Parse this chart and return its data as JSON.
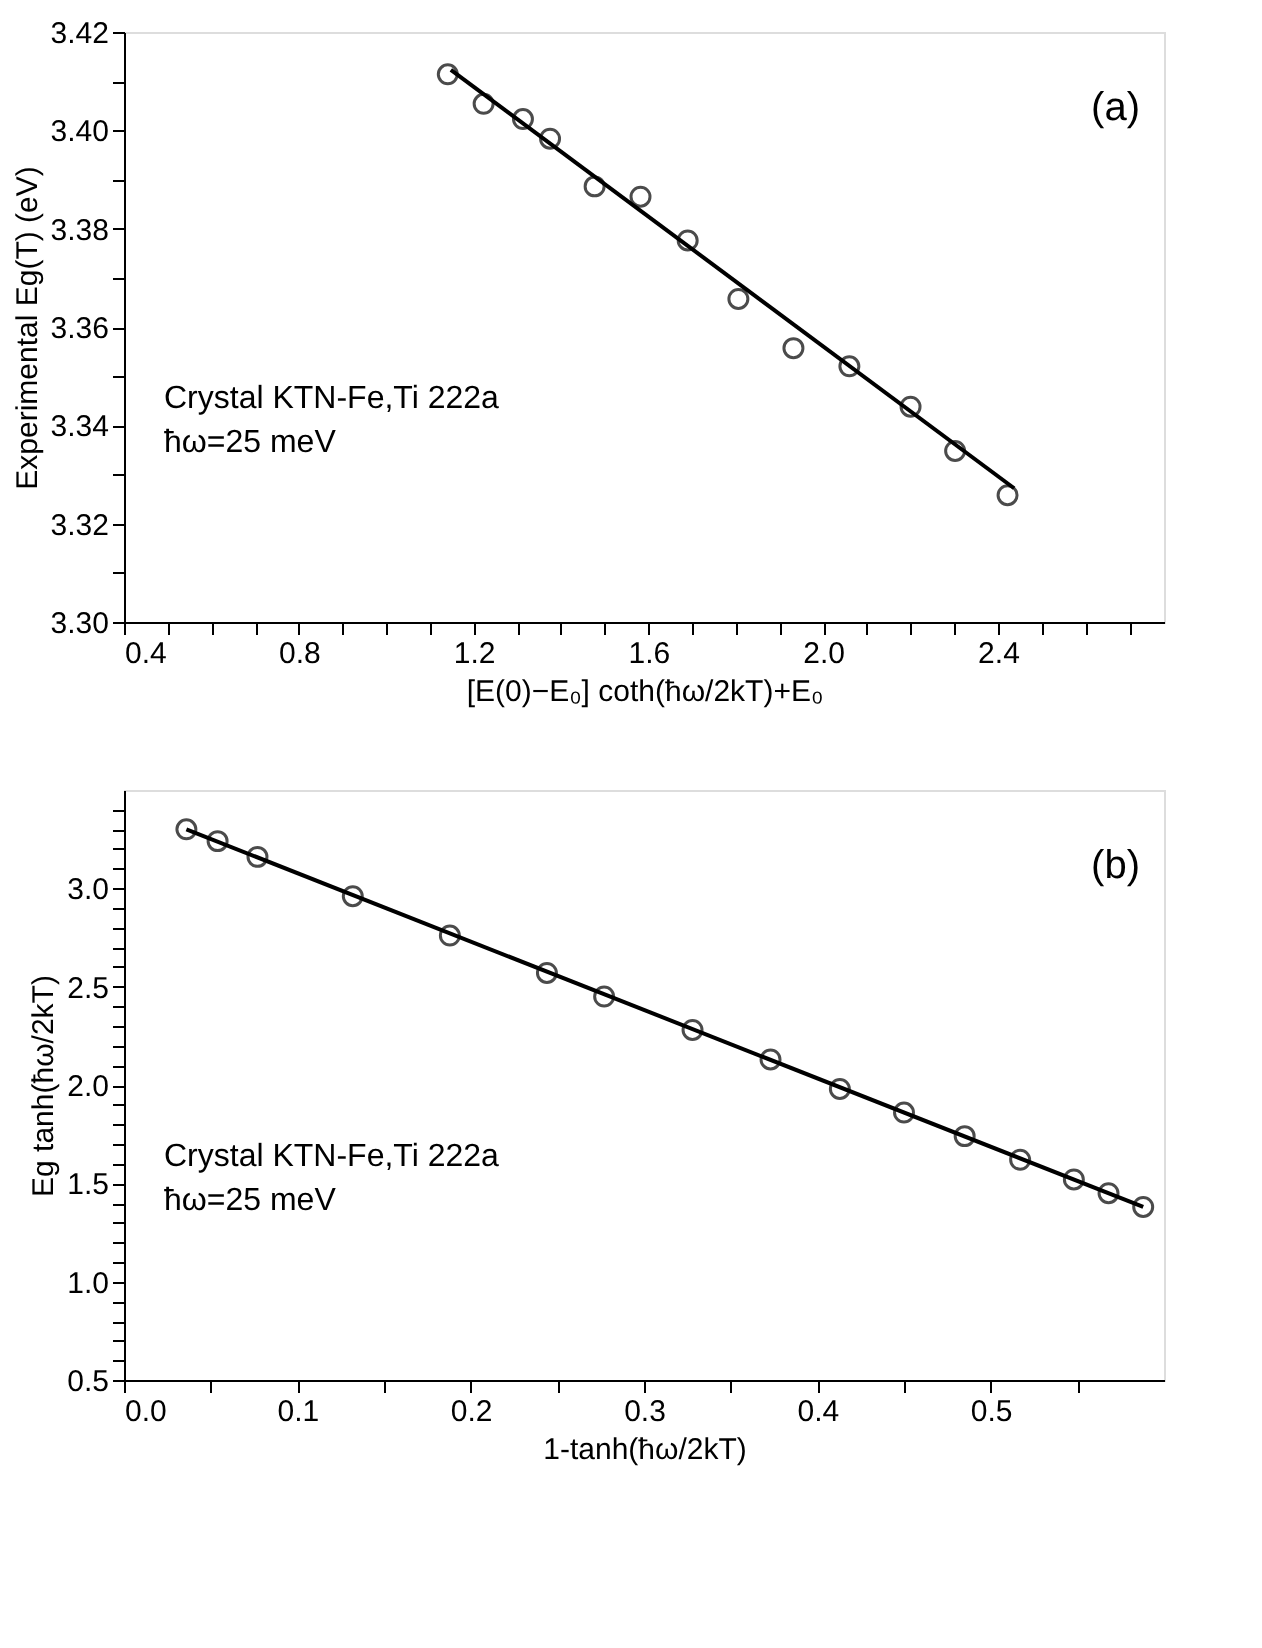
{
  "chart_data": [
    {
      "type": "scatter",
      "xlabel": "[E(0)−E₀] coth(ħω/2kT)+E₀",
      "ylabel": "Experimental Eg(T) (eV)",
      "annotations": [
        "(a)",
        "Crystal KTN-Fe,Ti 222a",
        "ħω=25 meV"
      ],
      "xlim": [
        0.4,
        2.78
      ],
      "ylim": [
        3.3,
        3.42
      ],
      "xticks": [
        0.4,
        {
          "value": 0.5,
          "label": null
        },
        {
          "value": 0.6,
          "label": null
        },
        {
          "value": 0.7,
          "label": null
        },
        0.8,
        {
          "value": 0.9,
          "label": null
        },
        {
          "value": 1.0,
          "label": null
        },
        {
          "value": 1.1,
          "label": null
        },
        1.2,
        {
          "value": 1.3,
          "label": null
        },
        {
          "value": 1.4,
          "label": null
        },
        {
          "value": 1.5,
          "label": null
        },
        1.6,
        {
          "value": 1.7,
          "label": null
        },
        {
          "value": 1.8,
          "label": null
        },
        {
          "value": 1.9,
          "label": null
        },
        {
          "value": 2.0,
          "label": "2.0"
        },
        {
          "value": 2.1,
          "label": null
        },
        {
          "value": 2.2,
          "label": null
        },
        {
          "value": 2.3,
          "label": null
        },
        2.4,
        {
          "value": 2.5,
          "label": null
        },
        {
          "value": 2.6,
          "label": null
        },
        {
          "value": 2.7,
          "label": null
        }
      ],
      "yticks": [
        {
          "value": 3.3,
          "label": "3.30"
        },
        {
          "value": 3.31,
          "label": null
        },
        3.32,
        {
          "value": 3.33,
          "label": null
        },
        3.34,
        {
          "value": 3.35,
          "label": null
        },
        3.36,
        {
          "value": 3.37,
          "label": null
        },
        3.38,
        {
          "value": 3.39,
          "label": null
        },
        {
          "value": 3.4,
          "label": "3.40"
        },
        {
          "value": 3.41,
          "label": null
        },
        3.42
      ],
      "grid": false,
      "series": [
        {
          "marker": "circle",
          "color": "#000000",
          "x": [
            1.141,
            1.223,
            1.313,
            1.375,
            1.477,
            1.582,
            1.69,
            1.806,
            1.932,
            2.06,
            2.2,
            2.302,
            2.422
          ],
          "values": [
            3.4114,
            3.4054,
            3.4023,
            3.3983,
            3.3886,
            3.3865,
            3.3776,
            3.3657,
            3.3557,
            3.352,
            3.3438,
            3.3348,
            3.3258
          ]
        },
        {
          "type": "line",
          "line_style": "solid",
          "color": "#000000",
          "x": [
            1.148,
            2.437
          ],
          "values": [
            3.4123,
            3.3272
          ]
        }
      ]
    },
    {
      "type": "scatter",
      "xlabel": "1-tanh(ħω/2kT)",
      "ylabel": "Eg tanh(ħω/2kT)",
      "annotations": [
        "(b)",
        "Crystal KTN-Fe,Ti 222a",
        "ħω=25 meV"
      ],
      "xlim": [
        0.0,
        0.6
      ],
      "ylim": [
        0.5,
        3.5
      ],
      "xticks": [
        {
          "value": 0.0,
          "label": "0.0"
        },
        {
          "value": 0.05,
          "label": null
        },
        0.1,
        {
          "value": 0.15,
          "label": null
        },
        0.2,
        {
          "value": 0.25,
          "label": null
        },
        0.3,
        {
          "value": 0.35,
          "label": null
        },
        0.4,
        {
          "value": 0.45,
          "label": null
        },
        0.5,
        {
          "value": 0.55,
          "label": null
        }
      ],
      "yticks": [
        0.5,
        {
          "value": 0.6,
          "label": null
        },
        {
          "value": 0.7,
          "label": null
        },
        {
          "value": 0.8,
          "label": null
        },
        {
          "value": 0.9,
          "label": null
        },
        {
          "value": 1.0,
          "label": "1.0"
        },
        {
          "value": 1.1,
          "label": null
        },
        {
          "value": 1.2,
          "label": null
        },
        {
          "value": 1.3,
          "label": null
        },
        {
          "value": 1.4,
          "label": null
        },
        1.5,
        {
          "value": 1.6,
          "label": null
        },
        {
          "value": 1.7,
          "label": null
        },
        {
          "value": 1.8,
          "label": null
        },
        {
          "value": 1.9,
          "label": null
        },
        {
          "value": 2.0,
          "label": "2.0"
        },
        {
          "value": 2.1,
          "label": null
        },
        {
          "value": 2.2,
          "label": null
        },
        {
          "value": 2.3,
          "label": null
        },
        {
          "value": 2.4,
          "label": null
        },
        2.5,
        {
          "value": 2.6,
          "label": null
        },
        {
          "value": 2.7,
          "label": null
        },
        {
          "value": 2.8,
          "label": null
        },
        {
          "value": 2.9,
          "label": null
        },
        {
          "value": 3.0,
          "label": "3.0"
        },
        {
          "value": 3.1,
          "label": null
        },
        {
          "value": 3.2,
          "label": null
        },
        {
          "value": 3.3,
          "label": null
        },
        {
          "value": 3.4,
          "label": null
        }
      ],
      "grid": false,
      "series": [
        {
          "marker": "circle",
          "color": "#000000",
          "x": [
            0.036,
            0.054,
            0.077,
            0.132,
            0.188,
            0.244,
            0.277,
            0.328,
            0.373,
            0.413,
            0.45,
            0.485,
            0.517,
            0.548,
            0.568,
            0.588
          ],
          "values": [
            3.3,
            3.24,
            3.16,
            2.96,
            2.76,
            2.57,
            2.45,
            2.28,
            2.13,
            1.98,
            1.86,
            1.74,
            1.62,
            1.52,
            1.45,
            1.38
          ]
        },
        {
          "type": "line",
          "line_style": "solid",
          "color": "#000000",
          "x": [
            0.036,
            0.588
          ],
          "values": [
            3.3,
            1.38
          ]
        }
      ]
    }
  ]
}
